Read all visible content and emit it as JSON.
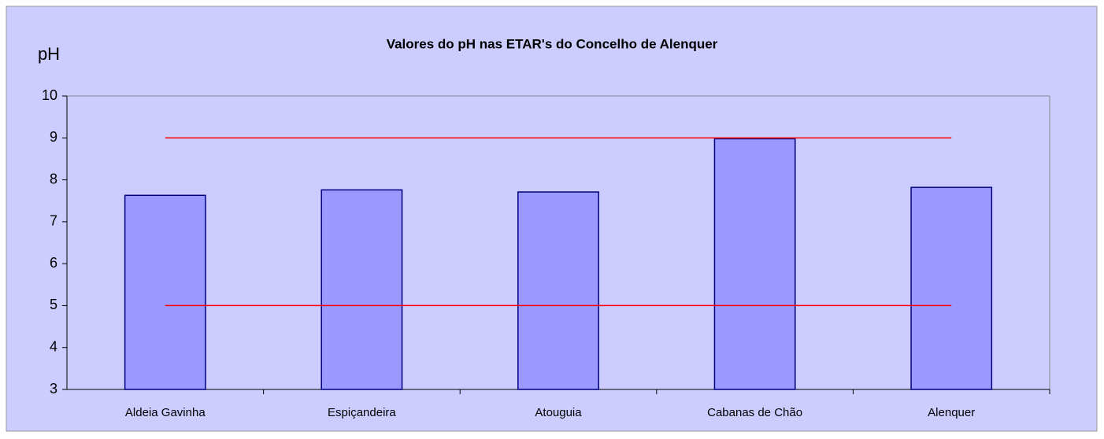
{
  "chart_data": {
    "type": "bar",
    "title": "Valores do pH nas ETAR's do Concelho de Alenquer",
    "y_label": "pH",
    "categories": [
      "Aldeia Gavinha",
      "Espiçandeira",
      "Atouguia",
      "Cabanas de Chão",
      "Alenquer"
    ],
    "values": [
      7.63,
      7.76,
      7.71,
      8.98,
      7.82
    ],
    "color": "#9999ff",
    "reference_lines": [
      9,
      5
    ],
    "reference_color": "#ff0000",
    "ylim": [
      3,
      10
    ],
    "yticks": [
      3,
      4,
      5,
      6,
      7,
      8,
      9,
      10
    ]
  }
}
